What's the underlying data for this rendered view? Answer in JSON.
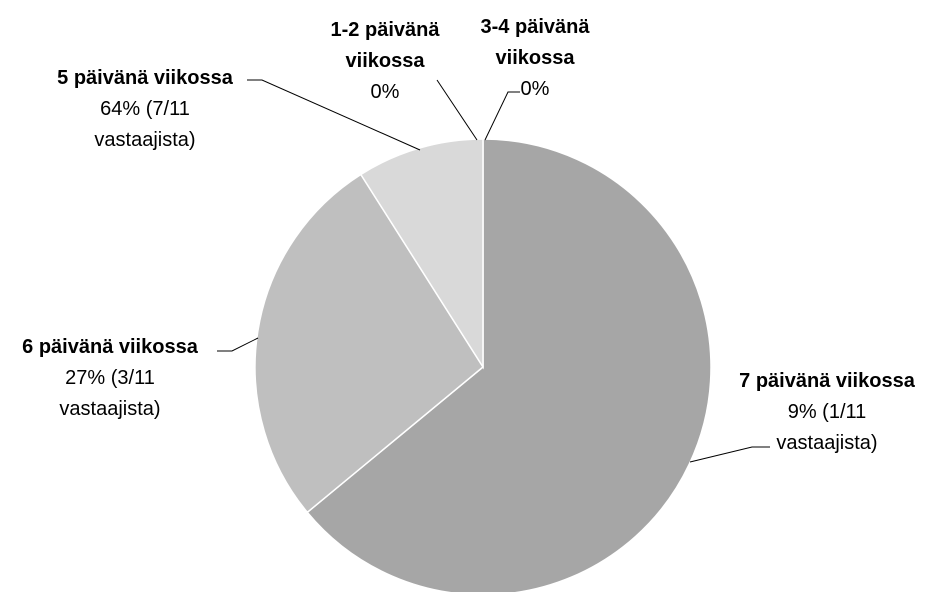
{
  "chart_data": {
    "type": "pie",
    "categories": [
      "1-2 päivänä viikossa",
      "3-4 päivänä viikossa",
      "5 päivänä viikossa",
      "6 päivänä viikossa",
      "7 päivänä viikossa"
    ],
    "values": [
      0,
      0,
      64,
      27,
      9
    ],
    "value_labels": [
      "0%",
      "0%",
      "64% (7/11 vastaajista)",
      "27% (3/11 vastaajista)",
      "9% (1/11 vastaajista)"
    ],
    "colors": [
      "#8c8c8c",
      "#999999",
      "#a6a6a6",
      "#bfbfbf",
      "#d9d9d9"
    ]
  }
}
